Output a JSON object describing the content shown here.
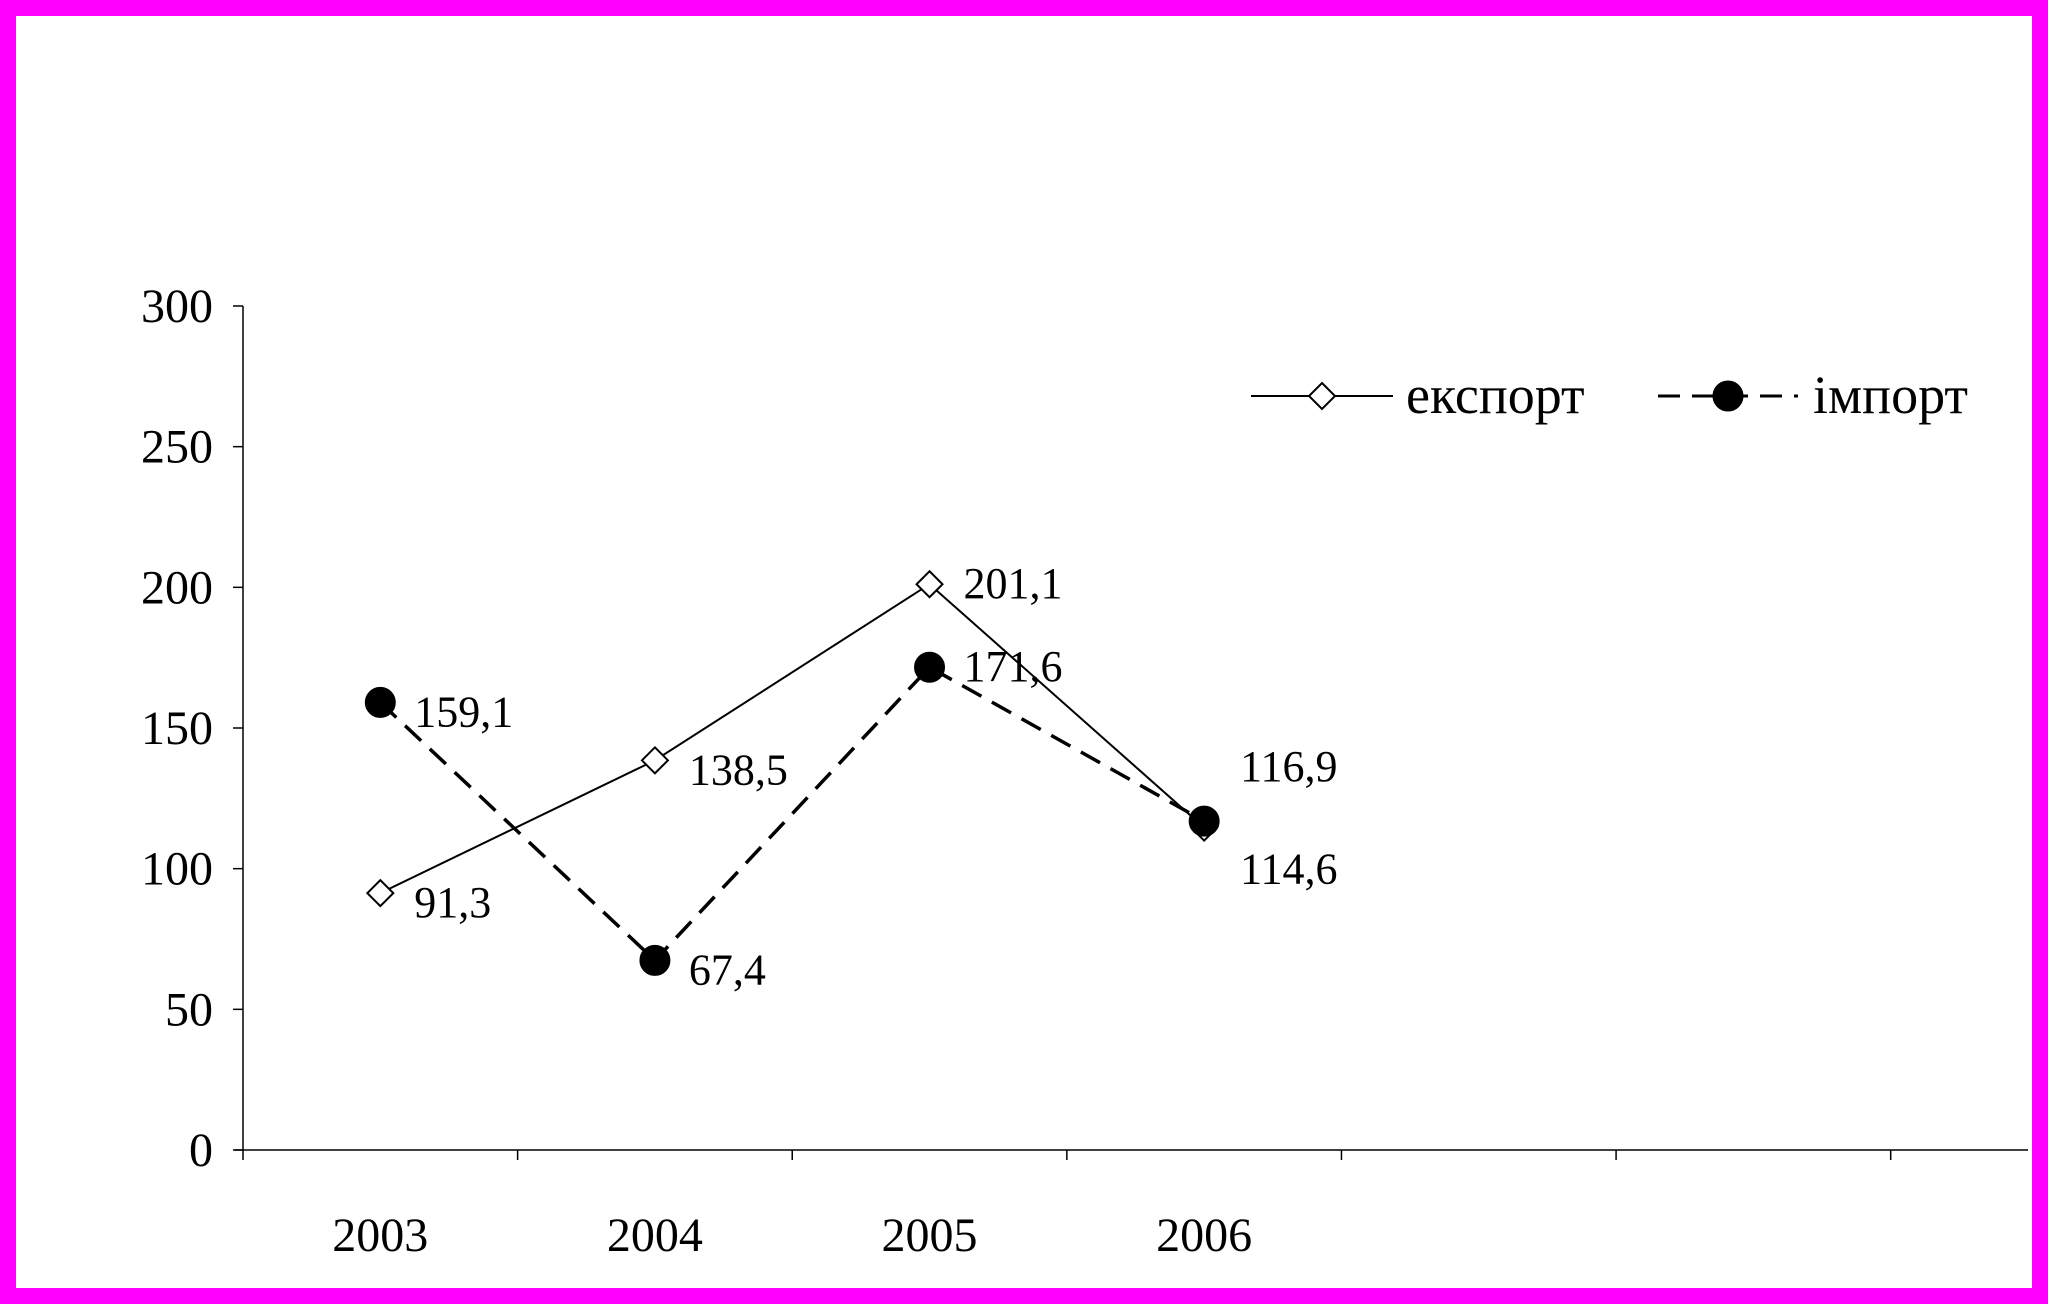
{
  "chart_data": {
    "type": "line",
    "title": "",
    "xlabel": "",
    "ylabel": "",
    "categories": [
      "2003",
      "2004",
      "2005",
      "2006"
    ],
    "ylim": [
      0,
      300
    ],
    "yticks": [
      0,
      50,
      100,
      150,
      200,
      250,
      300
    ],
    "grid": false,
    "legend_position": "top-right",
    "series": [
      {
        "name": "експорт",
        "values": [
          91.3,
          138.5,
          201.1,
          114.6
        ],
        "labels": [
          "91,3",
          "138,5",
          "201,1",
          "114,6"
        ],
        "marker": "diamond-open",
        "line_style": "solid",
        "color": "#000000"
      },
      {
        "name": "імпорт",
        "values": [
          159.1,
          67.4,
          171.6,
          116.9
        ],
        "labels": [
          "159,1",
          "67,4",
          "171,6",
          "116,9"
        ],
        "marker": "circle-filled",
        "line_style": "dashed",
        "color": "#000000"
      }
    ]
  },
  "frame_color": "#ff00ff"
}
